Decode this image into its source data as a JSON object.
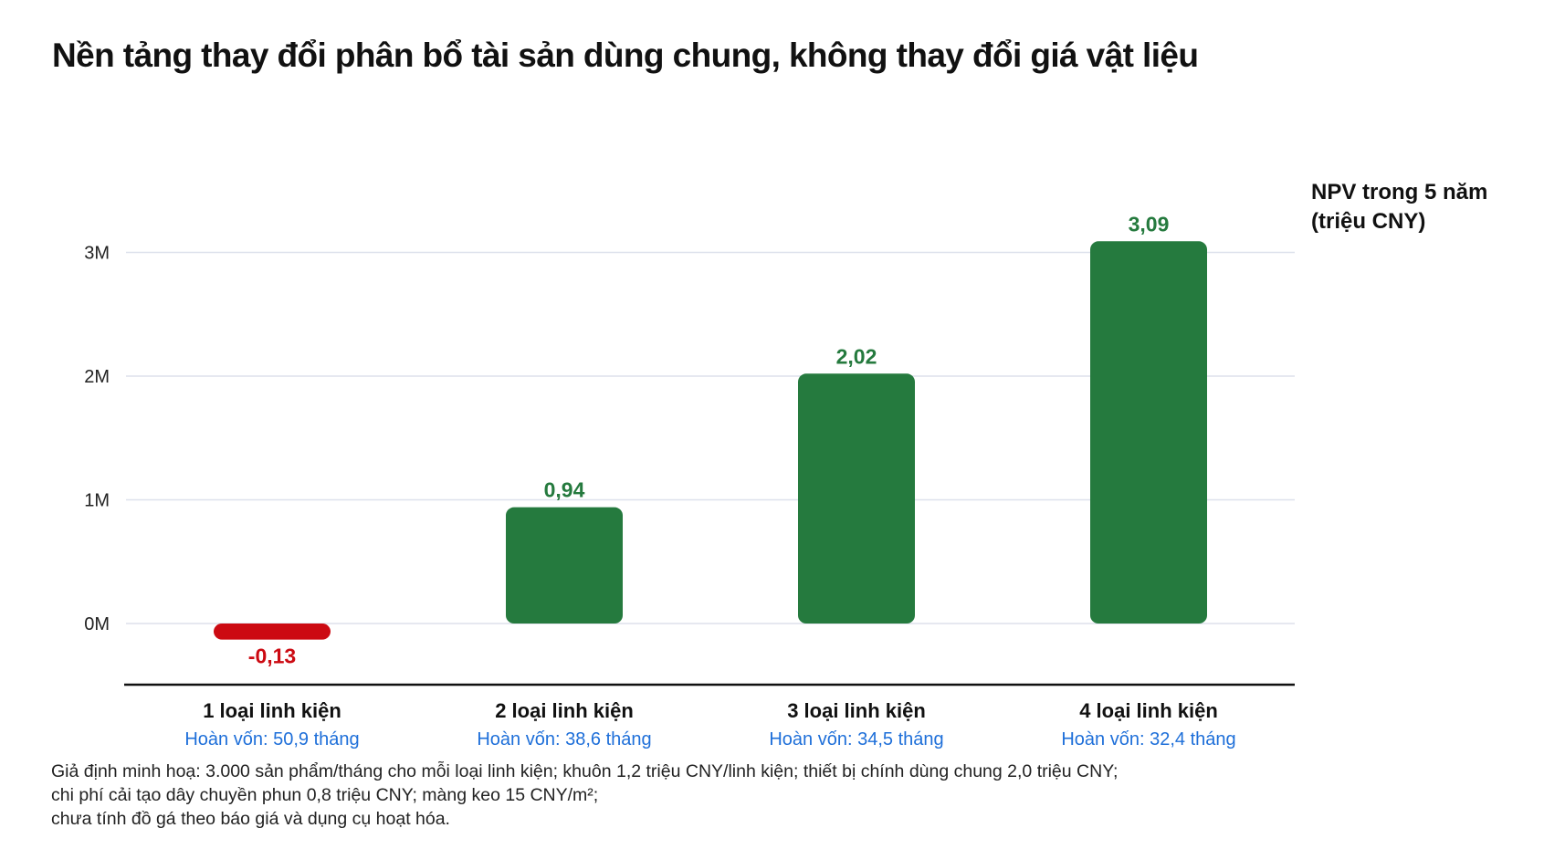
{
  "chart_data": {
    "type": "bar",
    "title": "Nền tảng thay đổi phân bổ tài sản dùng chung, không thay đổi giá vật liệu",
    "ylabel_lines": [
      "NPV trong 5 năm",
      "(triệu CNY)"
    ],
    "ylim": [
      -0.5,
      3.3
    ],
    "yticks": [
      0,
      1,
      2,
      3
    ],
    "ytick_labels": [
      "0M",
      "1M",
      "2M",
      "3M"
    ],
    "grid": true,
    "categories": [
      "1 loại linh kiện",
      "2 loại linh kiện",
      "3 loại linh kiện",
      "4 loại linh kiện"
    ],
    "sublabels": [
      "Hoàn vốn: 50,9 tháng",
      "Hoàn vốn: 38,6 tháng",
      "Hoàn vốn: 34,5 tháng",
      "Hoàn vốn: 32,4 tháng"
    ],
    "values": [
      -0.13,
      0.94,
      2.02,
      3.09
    ],
    "value_labels": [
      "-0,13",
      "0,94",
      "2,02",
      "3,09"
    ],
    "colors": {
      "positive": "#257a3e",
      "negative": "#cc0a12",
      "sublabel": "#1e6fd9",
      "grid": "#dde1ec",
      "axis": "#111111"
    }
  },
  "footnote": {
    "lines": [
      "Giả định minh hoạ: 3.000 sản phẩm/tháng cho mỗi loại linh kiện; khuôn 1,2 triệu CNY/linh kiện; thiết bị chính dùng chung 2,0 triệu CNY;",
      "chi phí cải tạo dây chuyền phun 0,8 triệu CNY; màng keo 15 CNY/m²;",
      "chưa tính đồ gá theo báo giá và dụng cụ hoạt hóa."
    ]
  }
}
